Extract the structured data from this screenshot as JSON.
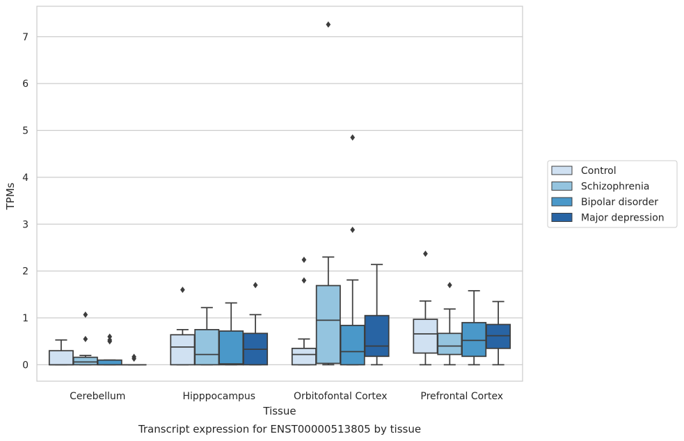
{
  "chart_data": {
    "type": "box",
    "title": "",
    "caption": "Transcript expression for ENST00000513805 by tissue",
    "xlabel": "Tissue",
    "ylabel": "TPMs",
    "ylim": [
      -0.35,
      7.65
    ],
    "yticks": [
      0,
      1,
      2,
      3,
      4,
      5,
      6,
      7
    ],
    "grid": "horizontal",
    "legend_position": "right",
    "categories": [
      "Cerebellum",
      "Hipppocampus",
      "Orbitofontal Cortex",
      "Prefrontal Cortex"
    ],
    "series": [
      {
        "name": "Control",
        "color": "#d0e1f2",
        "boxes": [
          {
            "whislo": 0,
            "q1": 0,
            "median": 0,
            "q3": 0.3,
            "whishi": 0.53,
            "fliers": []
          },
          {
            "whislo": 0,
            "q1": 0,
            "median": 0.38,
            "q3": 0.64,
            "whishi": 0.75,
            "fliers": [
              1.6
            ]
          },
          {
            "whislo": 0,
            "q1": 0,
            "median": 0.22,
            "q3": 0.35,
            "whishi": 0.55,
            "fliers": [
              1.8,
              2.24
            ]
          },
          {
            "whislo": 0,
            "q1": 0.25,
            "median": 0.66,
            "q3": 0.97,
            "whishi": 1.36,
            "fliers": [
              2.37
            ]
          }
        ]
      },
      {
        "name": "Schizophrenia",
        "color": "#94c4df",
        "boxes": [
          {
            "whislo": 0,
            "q1": 0,
            "median": 0.06,
            "q3": 0.16,
            "whishi": 0.2,
            "fliers": [
              0.55,
              1.07
            ]
          },
          {
            "whislo": 0,
            "q1": 0,
            "median": 0.22,
            "q3": 0.75,
            "whishi": 1.22,
            "fliers": []
          },
          {
            "whislo": 0,
            "q1": 0.03,
            "median": 0.95,
            "q3": 1.69,
            "whishi": 2.3,
            "fliers": [
              7.26
            ]
          },
          {
            "whislo": 0,
            "q1": 0.22,
            "median": 0.4,
            "q3": 0.67,
            "whishi": 1.19,
            "fliers": [
              1.7
            ]
          }
        ]
      },
      {
        "name": "Bipolar disorder",
        "color": "#4a98c9",
        "boxes": [
          {
            "whislo": 0,
            "q1": 0,
            "median": 0,
            "q3": 0.1,
            "whishi": 0.1,
            "fliers": [
              0.5,
              0.53,
              0.6
            ]
          },
          {
            "whislo": 0,
            "q1": 0,
            "median": 0.02,
            "q3": 0.72,
            "whishi": 1.32,
            "fliers": []
          },
          {
            "whislo": 0,
            "q1": 0,
            "median": 0.28,
            "q3": 0.84,
            "whishi": 1.81,
            "fliers": [
              2.88,
              4.85
            ]
          },
          {
            "whislo": 0,
            "q1": 0.18,
            "median": 0.52,
            "q3": 0.9,
            "whishi": 1.58,
            "fliers": []
          }
        ]
      },
      {
        "name": "Major depression",
        "color": "#2864a4",
        "boxes": [
          {
            "whislo": 0,
            "q1": 0,
            "median": 0,
            "q3": 0,
            "whishi": 0,
            "fliers": [
              0.13,
              0.17
            ]
          },
          {
            "whislo": 0,
            "q1": 0,
            "median": 0.33,
            "q3": 0.67,
            "whishi": 1.07,
            "fliers": [
              1.7
            ]
          },
          {
            "whislo": 0,
            "q1": 0.18,
            "median": 0.4,
            "q3": 1.05,
            "whishi": 2.14,
            "fliers": []
          },
          {
            "whislo": 0,
            "q1": 0.35,
            "median": 0.62,
            "q3": 0.86,
            "whishi": 1.35,
            "fliers": []
          }
        ]
      }
    ]
  }
}
